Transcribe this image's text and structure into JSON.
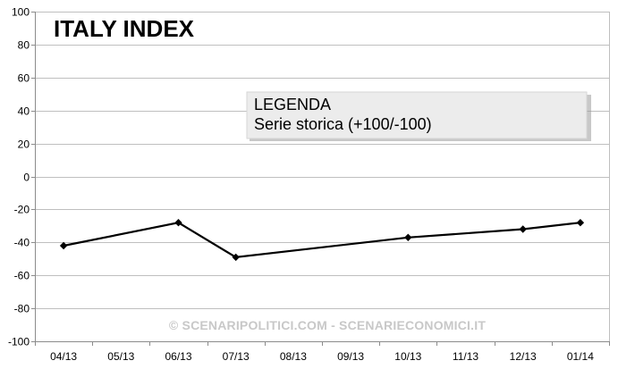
{
  "chart_data": {
    "type": "line",
    "title": "ITALY INDEX",
    "categories": [
      "04/13",
      "05/13",
      "06/13",
      "07/13",
      "08/13",
      "09/13",
      "10/13",
      "11/13",
      "12/13",
      "01/14"
    ],
    "ylim": [
      -100,
      100
    ],
    "yticks": [
      100,
      80,
      60,
      40,
      20,
      0,
      -20,
      -40,
      -60,
      -80,
      -100
    ],
    "series": [
      {
        "name": "Serie storica (+100/-100)",
        "color": "#000000",
        "points": [
          {
            "x": "04/13",
            "y": -42
          },
          {
            "x": "06/13",
            "y": -28
          },
          {
            "x": "07/13",
            "y": -49
          },
          {
            "x": "10/13",
            "y": -37
          },
          {
            "x": "12/13",
            "y": -32
          },
          {
            "x": "01/14",
            "y": -28
          }
        ]
      }
    ],
    "legend": {
      "heading": "LEGENDA",
      "entry": "Serie storica (+100/-100)",
      "placement": "top-center"
    },
    "watermark": "© SCENARIPOLITICI.COM - SCENARIECONOMICI.IT",
    "grid": true
  }
}
